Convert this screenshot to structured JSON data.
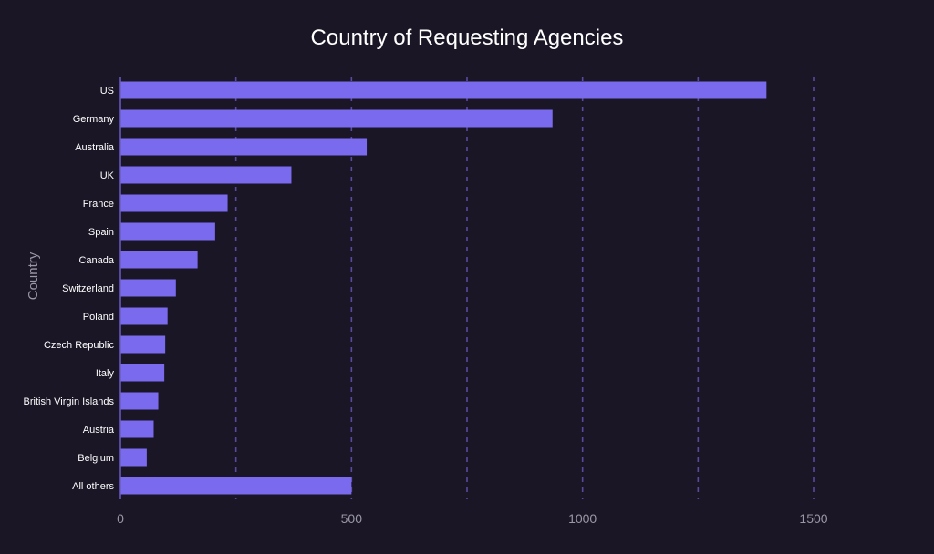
{
  "colors": {
    "background": "#1a1625",
    "bar": "#7a6bee",
    "gridline": "#5a4a9e",
    "axis_line": "#6b5cc4",
    "text": "#ffffff",
    "muted_text": "#9a97a8"
  },
  "chart_data": {
    "type": "bar",
    "orientation": "horizontal",
    "title": "Country of Requesting Agencies",
    "xlabel": "",
    "ylabel": "Country",
    "categories": [
      "US",
      "Germany",
      "Australia",
      "UK",
      "France",
      "Spain",
      "Canada",
      "Switzerland",
      "Poland",
      "Czech Republic",
      "Italy",
      "British Virgin Islands",
      "Austria",
      "Belgium",
      "All others"
    ],
    "values": [
      1398,
      935,
      533,
      370,
      232,
      205,
      167,
      120,
      102,
      97,
      95,
      82,
      72,
      57,
      500
    ],
    "xlim": [
      0,
      1500
    ],
    "xticks": [
      0,
      500,
      1000,
      1500
    ],
    "xtick_labels": [
      "0",
      "500",
      "1000",
      "1500"
    ],
    "grid": true,
    "grid_style": "dashed",
    "legend": "none"
  }
}
